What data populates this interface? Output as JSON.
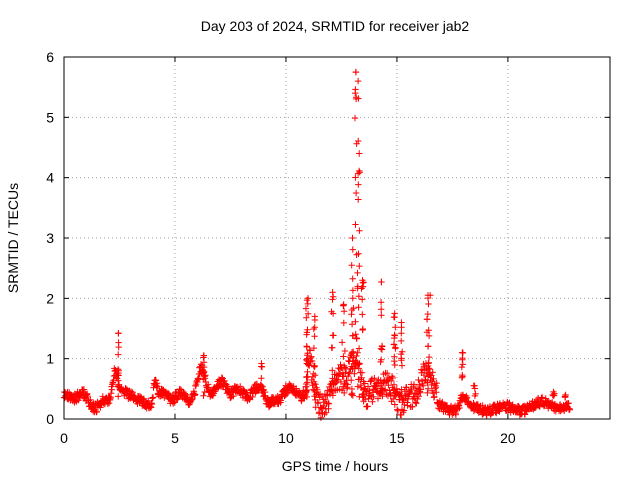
{
  "chart_data": {
    "type": "scatter",
    "title": "Day 203 of 2024, SRMTID for receiver jab2",
    "xlabel": "GPS time / hours",
    "ylabel": "SRMTID / TECUs",
    "xlim": [
      0,
      24.6
    ],
    "ylim": [
      0,
      6
    ],
    "xticks": [
      0,
      5,
      10,
      15,
      20
    ],
    "yticks": [
      0,
      1,
      2,
      3,
      4,
      5,
      6
    ],
    "grid": true,
    "marker": "+",
    "color": "#ff0000",
    "x_range_of_data": [
      0,
      22.8
    ],
    "peaks": [
      {
        "x": 2.45,
        "y": 1.42
      },
      {
        "x": 6.3,
        "y": 1.05
      },
      {
        "x": 11.0,
        "y": 2.0
      },
      {
        "x": 13.15,
        "y": 5.75
      },
      {
        "x": 14.3,
        "y": 2.27
      },
      {
        "x": 16.5,
        "y": 2.05
      },
      {
        "x": 17.95,
        "y": 1.1
      }
    ]
  }
}
